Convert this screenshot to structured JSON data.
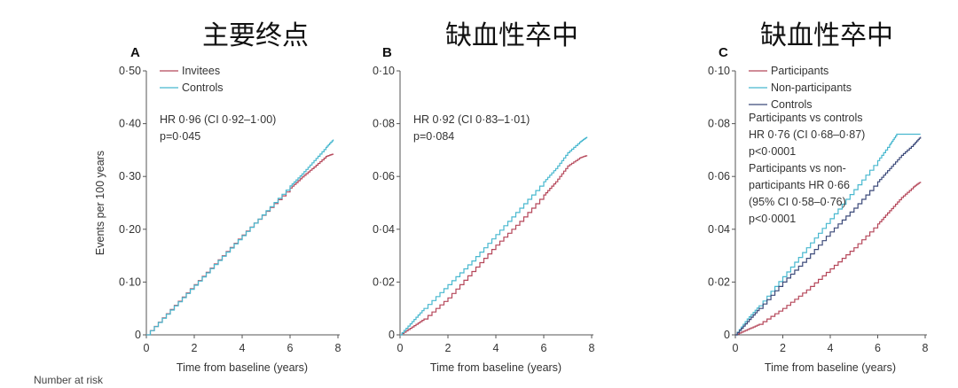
{
  "footer": {
    "text": "Number at risk"
  },
  "colors": {
    "red": "#b5475a",
    "cyan": "#48b8cf",
    "navy": "#3c4a7a",
    "axis": "#555555"
  },
  "chart_data": [
    {
      "panel": "A",
      "heading": "主要终点",
      "type": "line",
      "xlabel": "Time from baseline (years)",
      "ylabel": "Events per 100 years",
      "xlim": [
        0,
        8
      ],
      "ylim": [
        0,
        0.5
      ],
      "xticks": [
        0,
        2,
        4,
        6,
        8
      ],
      "xtick_labels": [
        "0",
        "2",
        "4",
        "6",
        "8"
      ],
      "yticks": [
        0,
        0.1,
        0.2,
        0.3,
        0.4,
        0.5
      ],
      "ytick_labels": [
        "0",
        "0·10",
        "0·20",
        "0·30",
        "0·40",
        "0·50"
      ],
      "legend": "top-left",
      "series": [
        {
          "name": "Invitees",
          "color": "red",
          "x": [
            0,
            1,
            2,
            3,
            4,
            5,
            6,
            6.5,
            7,
            7.5,
            7.8
          ],
          "y": [
            0,
            0.048,
            0.095,
            0.142,
            0.189,
            0.234,
            0.278,
            0.299,
            0.318,
            0.338,
            0.343
          ]
        },
        {
          "name": "Controls",
          "color": "cyan",
          "x": [
            0,
            1,
            2,
            3,
            4,
            5,
            6,
            6.5,
            7,
            7.5,
            7.8
          ],
          "y": [
            0,
            0.047,
            0.094,
            0.141,
            0.188,
            0.235,
            0.282,
            0.305,
            0.33,
            0.355,
            0.37
          ]
        }
      ],
      "annotations": [
        "HR 0·96 (CI 0·92–1·00)",
        "p=0·045"
      ]
    },
    {
      "panel": "B",
      "heading": "缺血性卒中",
      "type": "line",
      "xlabel": "Time from baseline (years)",
      "ylabel": "",
      "xlim": [
        0,
        8
      ],
      "ylim": [
        0,
        0.1
      ],
      "xticks": [
        0,
        2,
        4,
        6,
        8
      ],
      "xtick_labels": [
        "0",
        "2",
        "4",
        "6",
        "8"
      ],
      "yticks": [
        0,
        0.02,
        0.04,
        0.06,
        0.08,
        0.1
      ],
      "ytick_labels": [
        "0",
        "0·02",
        "0·04",
        "0·06",
        "0·08",
        "0·10"
      ],
      "series": [
        {
          "name": "",
          "color": "red",
          "x": [
            0,
            0.5,
            1,
            2,
            3,
            4,
            5,
            6,
            6.5,
            7,
            7.5,
            7.8
          ],
          "y": [
            0,
            0.003,
            0.006,
            0.014,
            0.024,
            0.034,
            0.043,
            0.053,
            0.058,
            0.064,
            0.067,
            0.068
          ]
        },
        {
          "name": "",
          "color": "cyan",
          "x": [
            0,
            0.5,
            1,
            2,
            3,
            4,
            5,
            6,
            6.5,
            7,
            7.5,
            7.8
          ],
          "y": [
            0,
            0.005,
            0.01,
            0.019,
            0.028,
            0.038,
            0.048,
            0.058,
            0.063,
            0.069,
            0.073,
            0.075
          ]
        }
      ],
      "annotations": [
        "HR 0·92 (CI 0·83–1·01)",
        "p=0·084"
      ]
    },
    {
      "panel": "C",
      "heading": "缺血性卒中",
      "type": "line",
      "xlabel": "Time from baseline (years)",
      "ylabel": "",
      "xlim": [
        0,
        8
      ],
      "ylim": [
        0,
        0.1
      ],
      "xticks": [
        0,
        2,
        4,
        6,
        8
      ],
      "xtick_labels": [
        "0",
        "2",
        "4",
        "6",
        "8"
      ],
      "yticks": [
        0,
        0.02,
        0.04,
        0.06,
        0.08,
        0.1
      ],
      "ytick_labels": [
        "0",
        "0·02",
        "0·04",
        "0·06",
        "0·08",
        "0·10"
      ],
      "legend": "top-left",
      "series": [
        {
          "name": "Participants",
          "color": "red",
          "x": [
            0,
            0.5,
            1,
            2,
            3,
            4,
            5,
            6,
            6.5,
            7,
            7.5,
            7.8
          ],
          "y": [
            0,
            0.002,
            0.004,
            0.01,
            0.017,
            0.025,
            0.033,
            0.042,
            0.047,
            0.052,
            0.056,
            0.058
          ]
        },
        {
          "name": "Non-participants",
          "color": "cyan",
          "x": [
            0,
            0.5,
            1,
            2,
            3,
            4,
            5,
            6,
            6.5,
            6.8,
            7,
            7.8
          ],
          "y": [
            0,
            0.006,
            0.011,
            0.022,
            0.033,
            0.044,
            0.055,
            0.066,
            0.072,
            0.076,
            0.076,
            0.076
          ]
        },
        {
          "name": "Controls",
          "color": "navy",
          "x": [
            0,
            0.5,
            1,
            2,
            3,
            4,
            5,
            6,
            6.5,
            7,
            7.5,
            7.8
          ],
          "y": [
            0,
            0.005,
            0.01,
            0.02,
            0.029,
            0.039,
            0.048,
            0.058,
            0.063,
            0.068,
            0.072,
            0.075
          ]
        }
      ],
      "annotations": [
        "Participants vs controls",
        "HR 0·76 (CI 0·68–0·87)",
        "p<0·0001",
        "Participants vs non-",
        "participants HR 0·66",
        "(95% CI 0·58–0·76)",
        "p<0·0001"
      ]
    }
  ]
}
